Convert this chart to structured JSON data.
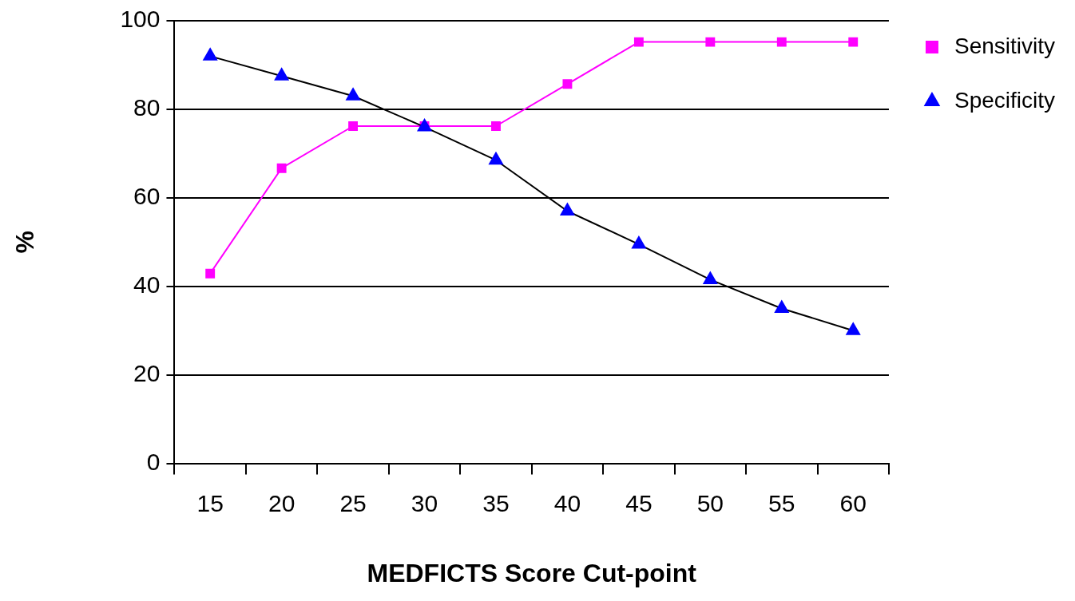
{
  "chart_data": {
    "type": "line",
    "xlabel": "MEDFICTS Score Cut-point",
    "ylabel": "%",
    "categories": [
      "15",
      "20",
      "25",
      "30",
      "35",
      "40",
      "45",
      "50",
      "55",
      "60"
    ],
    "series": [
      {
        "name": "Sensitivity",
        "color": "#ff00ff",
        "marker": "square",
        "values": [
          42.9,
          66.7,
          76.2,
          76.2,
          76.2,
          85.7,
          95.2,
          95.2,
          95.2,
          95.2
        ]
      },
      {
        "name": "Specificity",
        "color": "#0000ff",
        "marker": "triangle",
        "values": [
          92,
          87.5,
          83,
          76,
          68.5,
          57,
          49.5,
          41.5,
          35,
          30
        ]
      }
    ],
    "ylim": [
      0,
      100
    ],
    "yticks": [
      0,
      20,
      40,
      60,
      80,
      100
    ],
    "grid": "y",
    "legend": "top right",
    "line_style": "solid"
  }
}
